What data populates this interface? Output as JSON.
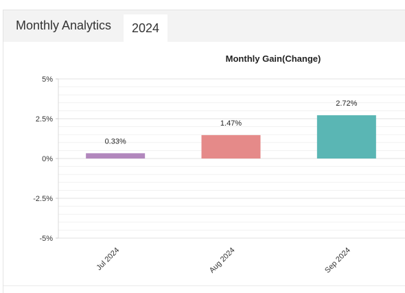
{
  "header": {
    "title": "Monthly Analytics",
    "year_tab": "2024"
  },
  "chart_data": {
    "type": "bar",
    "title": "Monthly Gain(Change)",
    "categories": [
      "Jul 2024",
      "Aug 2024",
      "Sep 2024"
    ],
    "values": [
      0.33,
      1.47,
      2.72
    ],
    "data_labels": [
      "0.33%",
      "1.47%",
      "2.72%"
    ],
    "colors": [
      "#b287bd",
      "#e58a89",
      "#5ab6b4"
    ],
    "yticks": [
      5,
      2.5,
      0,
      -2.5,
      -5
    ],
    "ytick_labels": [
      "5%",
      "2.5%",
      "0%",
      "-2.5%",
      "-5%"
    ],
    "ylim": [
      -5,
      5
    ],
    "grid": true
  }
}
